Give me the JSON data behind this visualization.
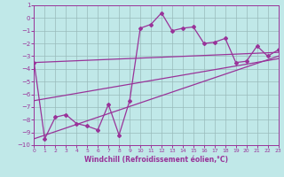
{
  "bg_color": "#c0e8e8",
  "line_color": "#993399",
  "grid_color": "#99bbbb",
  "xlabel": "Windchill (Refroidissement éolien,°C)",
  "xlim": [
    0,
    23
  ],
  "ylim": [
    -10,
    1
  ],
  "xticks": [
    0,
    1,
    2,
    3,
    4,
    5,
    6,
    7,
    8,
    9,
    10,
    11,
    12,
    13,
    14,
    15,
    16,
    17,
    18,
    19,
    20,
    21,
    22,
    23
  ],
  "yticks": [
    1,
    0,
    -1,
    -2,
    -3,
    -4,
    -5,
    -6,
    -7,
    -8,
    -9,
    -10
  ],
  "series_x": [
    0,
    1,
    2,
    3,
    4,
    5,
    6,
    7,
    8,
    9,
    10,
    11,
    12,
    13,
    14,
    15,
    16,
    17,
    18,
    19,
    20,
    21,
    22,
    23
  ],
  "series_y": [
    -3.5,
    -9.5,
    -7.8,
    -7.6,
    -8.3,
    -8.5,
    -8.8,
    -6.8,
    -9.2,
    -6.5,
    -0.8,
    -0.5,
    0.4,
    -1.0,
    -0.8,
    -0.7,
    -2.0,
    -1.9,
    -1.6,
    -3.5,
    -3.4,
    -2.2,
    -3.0,
    -2.5
  ],
  "trend1_x": [
    0,
    23
  ],
  "trend1_y": [
    -3.5,
    -2.7
  ],
  "trend2_x": [
    0,
    23
  ],
  "trend2_y": [
    -6.5,
    -3.2
  ],
  "trend3_x": [
    0,
    23
  ],
  "trend3_y": [
    -9.5,
    -3.0
  ]
}
